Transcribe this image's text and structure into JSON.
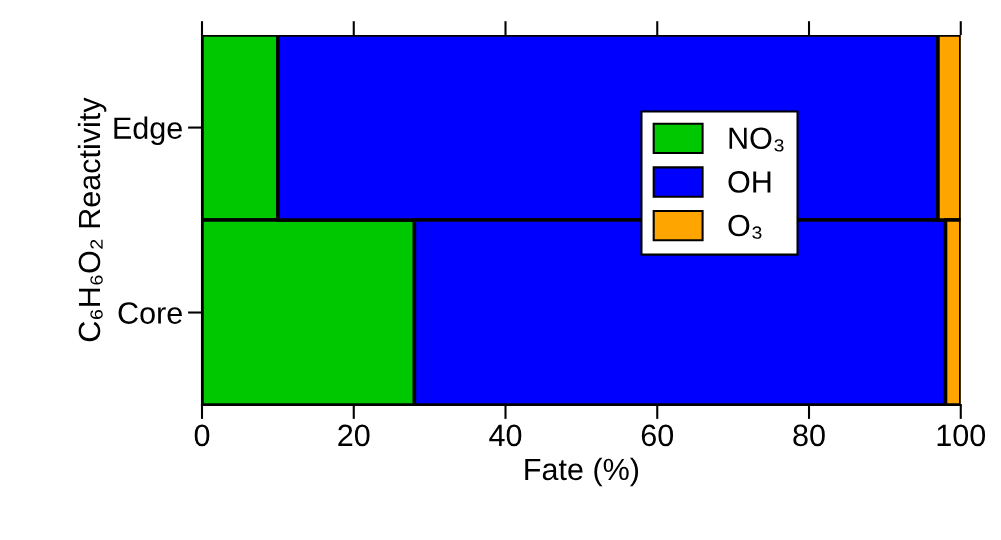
{
  "chart_data": {
    "type": "bar",
    "orientation": "horizontal",
    "stacked": true,
    "categories": [
      "Edge",
      "Core"
    ],
    "series": [
      {
        "name": "NO₃",
        "color": "#00c800",
        "values": [
          10,
          28
        ]
      },
      {
        "name": "OH",
        "color": "#0000ff",
        "values": [
          87,
          70
        ]
      },
      {
        "name": "O₃",
        "color": "#ffa500",
        "values": [
          3,
          2
        ]
      }
    ],
    "xlabel": "Fate (%)",
    "ylabel": "C₆H₆O₂ Reactivity",
    "xlim": [
      0,
      100
    ],
    "xticks": [
      0,
      20,
      40,
      60,
      80,
      100
    ],
    "grid": false,
    "legend": "right"
  }
}
